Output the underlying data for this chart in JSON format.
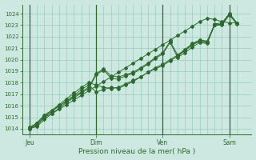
{
  "title": "Pression niveau de la mer( hPa )",
  "bg_color": "#cce8e0",
  "grid_color": "#99ccbb",
  "line_color": "#2d6a2d",
  "ylim": [
    1013.5,
    1024.8
  ],
  "yticks": [
    1014,
    1015,
    1016,
    1017,
    1018,
    1019,
    1020,
    1021,
    1022,
    1023,
    1024
  ],
  "xtick_labels": [
    "Jeu",
    "Dim",
    "Ven",
    "Sam"
  ],
  "xtick_positions": [
    0,
    72,
    144,
    216
  ],
  "vline_positions": [
    0,
    72,
    144,
    216
  ],
  "xlim": [
    -8,
    240
  ],
  "series": [
    [
      1014.0,
      1014.4,
      1015.0,
      1015.3,
      1015.7,
      1016.1,
      1016.5,
      1016.9,
      1017.3,
      1017.7,
      1018.1,
      1018.5,
      1018.9,
      1019.3,
      1019.7,
      1020.1,
      1020.5,
      1020.9,
      1021.3,
      1021.7,
      1022.1,
      1022.5,
      1022.9,
      1023.3,
      1023.6,
      1023.5,
      1023.3,
      1023.2,
      1023.2
    ],
    [
      1014.1,
      1014.5,
      1015.2,
      1015.6,
      1016.1,
      1016.6,
      1017.1,
      1017.6,
      1018.0,
      1017.8,
      1017.6,
      1017.5,
      1017.6,
      1017.9,
      1018.2,
      1018.5,
      1018.9,
      1019.2,
      1019.5,
      1019.9,
      1020.3,
      1020.8,
      1021.3,
      1021.7,
      1021.6,
      1023.0,
      1023.1,
      1024.0,
      1023.2
    ],
    [
      1014.1,
      1014.5,
      1015.1,
      1015.5,
      1016.0,
      1016.4,
      1016.9,
      1017.4,
      1017.8,
      1017.2,
      1017.4,
      1017.6,
      1017.5,
      1017.8,
      1018.1,
      1018.5,
      1018.9,
      1019.3,
      1019.6,
      1020.0,
      1020.4,
      1020.9,
      1021.4,
      1021.7,
      1021.6,
      1023.0,
      1023.0,
      1023.9,
      1023.2
    ],
    [
      1014.0,
      1014.3,
      1015.0,
      1015.5,
      1016.0,
      1016.4,
      1016.8,
      1017.2,
      1017.6,
      1018.8,
      1019.2,
      1018.6,
      1018.5,
      1018.7,
      1018.9,
      1019.3,
      1019.7,
      1020.2,
      1020.6,
      1021.6,
      1020.4,
      1020.8,
      1021.3,
      1021.6,
      1021.5,
      1023.1,
      1023.2,
      1024.0,
      1023.2
    ],
    [
      1014.0,
      1014.2,
      1014.8,
      1015.3,
      1015.8,
      1016.3,
      1016.7,
      1017.1,
      1017.5,
      1018.7,
      1019.1,
      1018.4,
      1018.3,
      1018.6,
      1018.8,
      1019.2,
      1019.6,
      1020.1,
      1020.5,
      1021.5,
      1020.2,
      1020.6,
      1021.1,
      1021.5,
      1021.4,
      1023.0,
      1023.1,
      1023.9,
      1023.1
    ]
  ],
  "series_x": [
    0,
    8,
    16,
    24,
    32,
    40,
    48,
    56,
    64,
    72,
    80,
    88,
    96,
    104,
    112,
    120,
    128,
    136,
    144,
    152,
    160,
    168,
    176,
    184,
    192,
    200,
    208,
    216,
    224
  ]
}
